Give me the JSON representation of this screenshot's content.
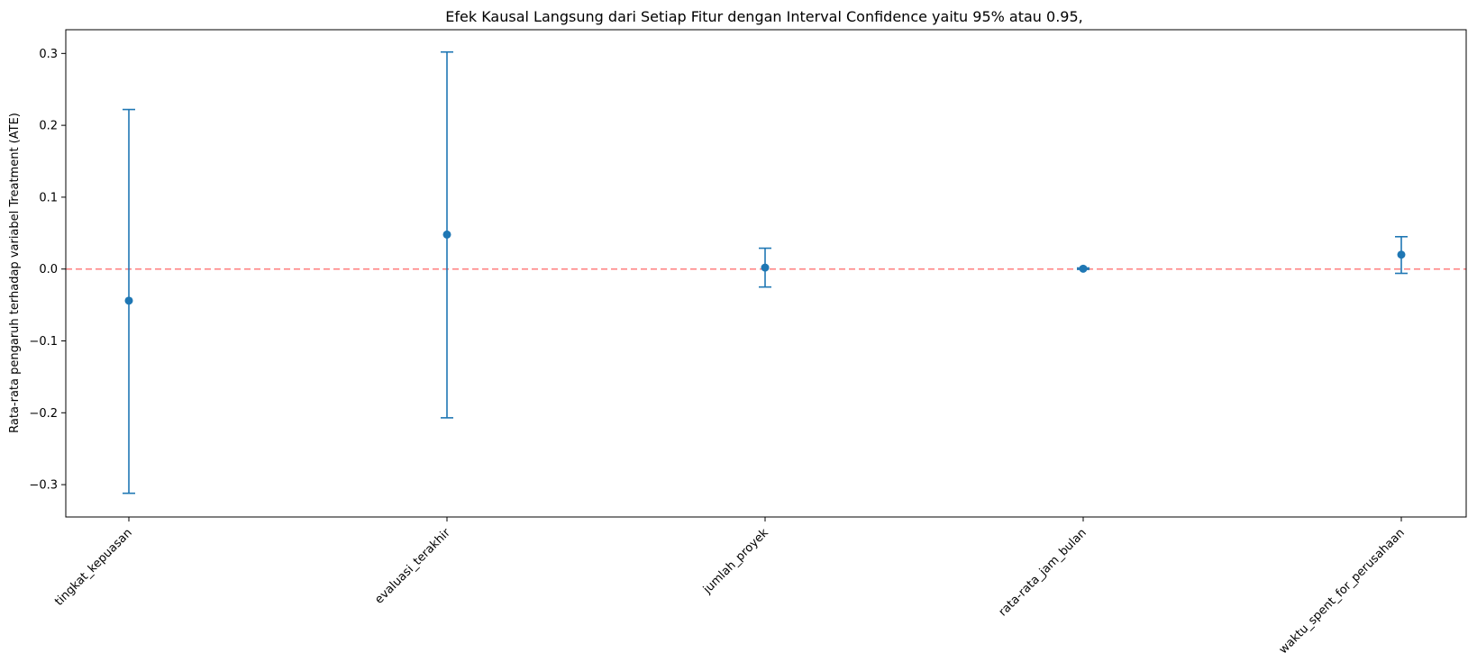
{
  "chart_data": {
    "type": "scatter",
    "title": "Efek Kausal Langsung dari Setiap Fitur dengan Interval Confidence yaitu 95% atau 0.95,",
    "xlabel": "",
    "ylabel": "Rata-rata pengaruh terhadap variabel Treatment (ATE)",
    "categories": [
      "tingkat_kepuasan",
      "evaluasi_terakhir",
      "jumlah_proyek",
      "rata-rata_jam_bulan",
      "waktu_spent_for_perusahaan"
    ],
    "series": [
      {
        "values": [
          -0.044,
          0.048,
          0.002,
          0.0005,
          0.02
        ],
        "ci_lower": [
          -0.312,
          -0.207,
          -0.025,
          -0.0005,
          -0.006
        ],
        "ci_upper": [
          0.222,
          0.302,
          0.029,
          0.0015,
          0.045
        ]
      }
    ],
    "ylim": [
      -0.345,
      0.333
    ],
    "yticks": [
      -0.3,
      -0.2,
      -0.1,
      0.0,
      0.1,
      0.2,
      0.3
    ],
    "ytick_labels": [
      "−0.3",
      "−0.2",
      "−0.1",
      "0.0",
      "0.1",
      "0.2",
      "0.3"
    ],
    "reference_line": {
      "y": 0.0,
      "style": "dashed",
      "color": "#ff7f7f"
    },
    "grid": false,
    "legend": "none",
    "colors": {
      "series": "#1f77b4",
      "reference": "#ff7f7f",
      "axes": "#000000"
    }
  }
}
